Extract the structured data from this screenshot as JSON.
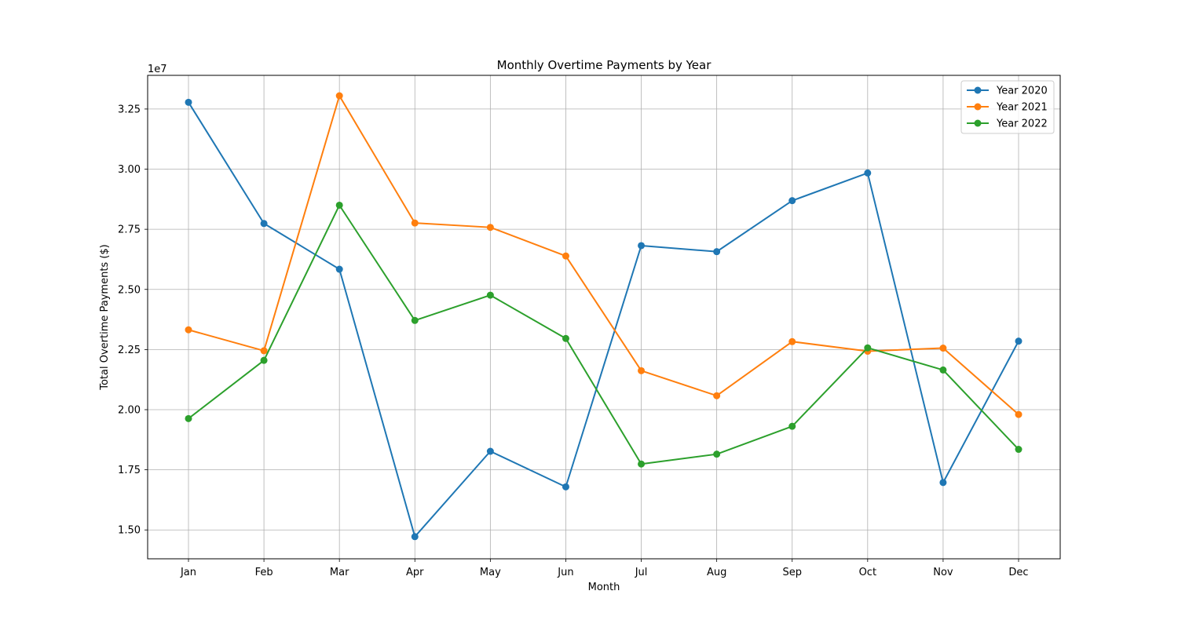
{
  "chart_data": {
    "type": "line",
    "title": "Monthly Overtime Payments by Year",
    "xlabel": "Month",
    "ylabel": "Total Overtime Payments ($)",
    "y_offset_text": "1e7",
    "categories": [
      "Jan",
      "Feb",
      "Mar",
      "Apr",
      "May",
      "Jun",
      "Jul",
      "Aug",
      "Sep",
      "Oct",
      "Nov",
      "Dec"
    ],
    "yticks": [
      15000000,
      17500000,
      20000000,
      22500000,
      25000000,
      27500000,
      30000000,
      32500000
    ],
    "ytick_labels": [
      "1.50",
      "1.75",
      "2.00",
      "2.25",
      "2.50",
      "2.75",
      "3.00",
      "3.25"
    ],
    "ylim": [
      13800000,
      33900000
    ],
    "grid": true,
    "legend_position": "top-right",
    "marker": "circle",
    "series": [
      {
        "name": "Year 2020",
        "color": "#1f77b4",
        "values": [
          32780000,
          27740000,
          25840000,
          14720000,
          18270000,
          16790000,
          26820000,
          26570000,
          28690000,
          29840000,
          16970000,
          22850000
        ]
      },
      {
        "name": "Year 2021",
        "color": "#ff7f0e",
        "values": [
          23320000,
          22450000,
          33050000,
          27760000,
          27580000,
          26390000,
          21620000,
          20580000,
          22830000,
          22430000,
          22560000,
          19800000
        ]
      },
      {
        "name": "Year 2022",
        "color": "#2ca02c",
        "values": [
          19630000,
          22050000,
          28500000,
          23710000,
          24760000,
          22960000,
          17740000,
          18150000,
          19310000,
          22570000,
          21650000,
          18350000
        ]
      }
    ]
  }
}
